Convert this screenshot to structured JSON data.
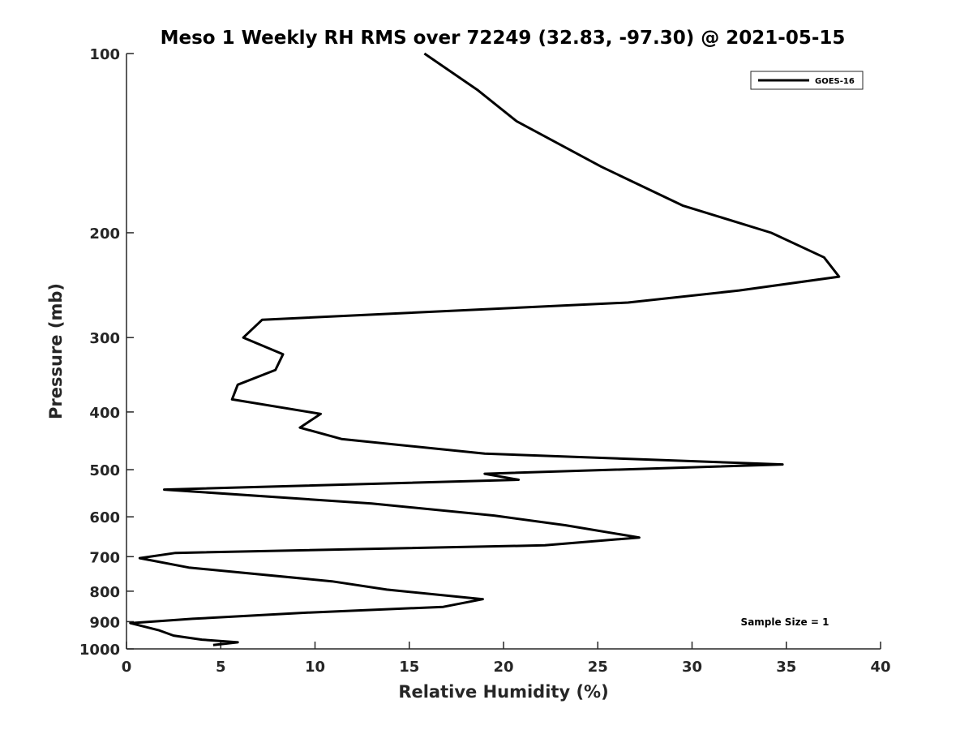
{
  "chart_data": {
    "type": "line",
    "title": "Meso 1 Weekly RH RMS over 72249 (32.83, -97.30) @ 2021-05-15",
    "xlabel": "Relative Humidity (%)",
    "ylabel": "Pressure (mb)",
    "xlim": [
      0,
      40
    ],
    "ylim": [
      1000,
      100
    ],
    "yscale": "log",
    "y_inverted": true,
    "grid": false,
    "xticks": [
      0,
      5,
      10,
      15,
      20,
      25,
      30,
      35,
      40
    ],
    "yticks": [
      100,
      200,
      300,
      400,
      500,
      600,
      700,
      800,
      900,
      1000
    ],
    "legend": {
      "position": "top-right",
      "entries": [
        "GOES-16"
      ]
    },
    "annotation": "Sample Size = 1",
    "series": [
      {
        "name": "GOES-16",
        "color": "#000000",
        "points": [
          [
            15.8,
            100
          ],
          [
            18.6,
            115
          ],
          [
            20.7,
            130
          ],
          [
            25.2,
            155
          ],
          [
            29.5,
            180
          ],
          [
            34.2,
            200
          ],
          [
            37.0,
            220
          ],
          [
            37.8,
            237
          ],
          [
            32.5,
            250
          ],
          [
            26.6,
            262
          ],
          [
            7.2,
            280
          ],
          [
            6.2,
            300
          ],
          [
            8.3,
            320
          ],
          [
            7.9,
            340
          ],
          [
            5.9,
            360
          ],
          [
            5.6,
            381
          ],
          [
            10.3,
            403
          ],
          [
            9.2,
            425
          ],
          [
            11.4,
            444
          ],
          [
            19.0,
            470
          ],
          [
            34.8,
            490
          ],
          [
            19.0,
            508
          ],
          [
            20.8,
            520
          ],
          [
            2.0,
            540
          ],
          [
            13.0,
            570
          ],
          [
            19.5,
            597
          ],
          [
            23.3,
            620
          ],
          [
            27.2,
            650
          ],
          [
            22.2,
            670
          ],
          [
            2.6,
            690
          ],
          [
            0.7,
            704
          ],
          [
            3.3,
            730
          ],
          [
            10.9,
            770
          ],
          [
            13.8,
            795
          ],
          [
            18.9,
            825
          ],
          [
            16.8,
            850
          ],
          [
            9.3,
            870
          ],
          [
            3.5,
            890
          ],
          [
            0.2,
            905
          ],
          [
            1.7,
            930
          ],
          [
            2.5,
            950
          ],
          [
            4.0,
            965
          ],
          [
            5.9,
            975
          ],
          [
            4.6,
            985
          ]
        ]
      }
    ]
  }
}
